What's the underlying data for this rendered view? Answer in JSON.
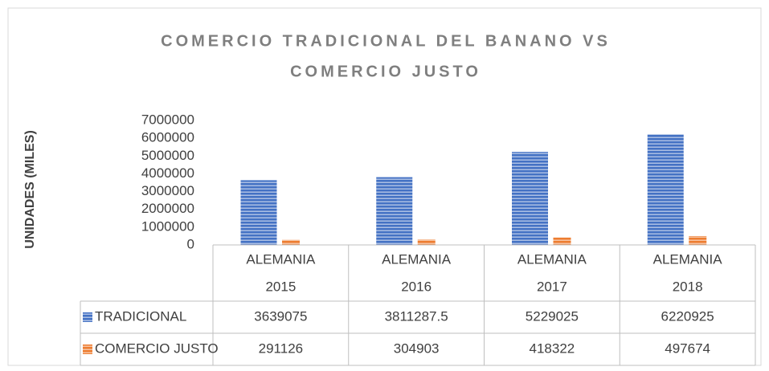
{
  "chart_data": {
    "type": "bar",
    "title": [
      "COMERCIO TRADICIONAL DEL BANANO VS",
      "COMERCIO JUSTO"
    ],
    "y_label": "UNIDADES (MILES)",
    "categories": [
      [
        "ALEMANIA",
        "2015"
      ],
      [
        "ALEMANIA",
        "2016"
      ],
      [
        "ALEMANIA",
        "2017"
      ],
      [
        "ALEMANIA",
        "2018"
      ]
    ],
    "series": [
      {
        "name": "TRADICIONAL",
        "color": "#4472c4",
        "values": [
          3639075,
          3811287.5,
          5229025,
          6220925
        ]
      },
      {
        "name": "COMERCIO JUSTO",
        "color": "#ed7d31",
        "values": [
          291126,
          304903,
          418322,
          497674
        ]
      }
    ],
    "ylim": [
      0,
      7000000
    ],
    "yticks": [
      0,
      1000000,
      2000000,
      3000000,
      4000000,
      5000000,
      6000000,
      7000000
    ],
    "grid": false,
    "data_table": true
  }
}
